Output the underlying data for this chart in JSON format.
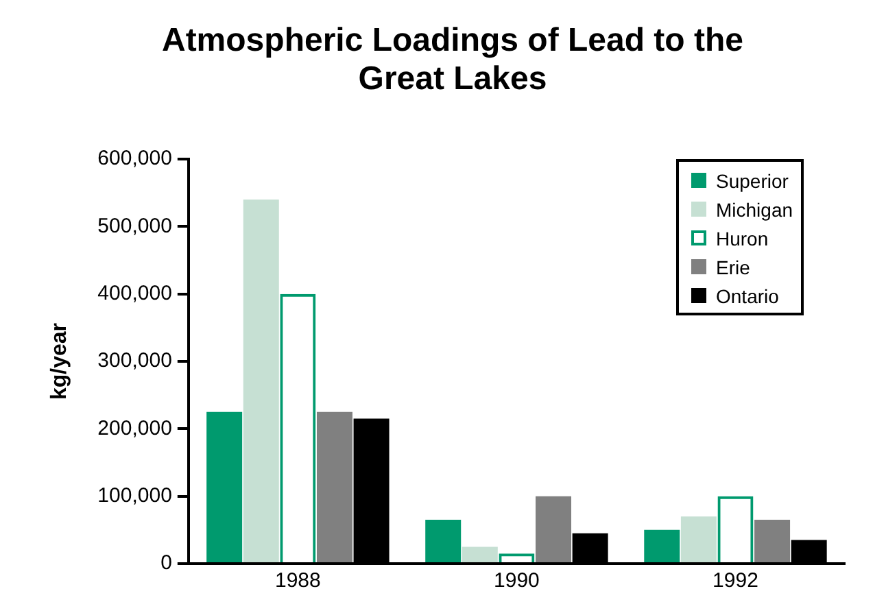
{
  "chart_data": {
    "type": "bar",
    "title": "Atmospheric Loadings of Lead to the Great Lakes",
    "ylabel": "kg/year",
    "categories": [
      "1988",
      "1990",
      "1992"
    ],
    "series": [
      {
        "name": "Superior",
        "color": "#009a6e",
        "values": [
          225000,
          65000,
          50000
        ]
      },
      {
        "name": "Michigan",
        "color": "#c6e0d3",
        "values": [
          540000,
          25000,
          70000
        ]
      },
      {
        "name": "Huron",
        "color": "#009a6e",
        "values": [
          400000,
          15000,
          100000
        ]
      },
      {
        "name": "Erie",
        "color": "#808080",
        "values": [
          225000,
          100000,
          65000
        ]
      },
      {
        "name": "Ontario",
        "color": "#000000",
        "values": [
          215000,
          45000,
          35000
        ]
      }
    ],
    "ylim": [
      0,
      600000
    ],
    "yticks": [
      0,
      {
        "value": 100000,
        "label": "100,000"
      },
      {
        "value": 200000,
        "label": "200,000"
      },
      {
        "value": 300000,
        "label": "300,000"
      },
      {
        "value": 400000,
        "label": "400,000"
      },
      {
        "value": 500000,
        "label": "500,000"
      },
      {
        "value": 600000,
        "label": "600,000"
      }
    ],
    "grid": false,
    "legend": "top right"
  }
}
